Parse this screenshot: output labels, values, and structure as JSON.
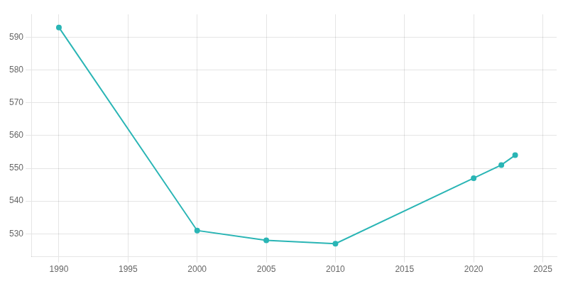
{
  "chart_data": {
    "type": "line",
    "x": [
      1990,
      2000,
      2005,
      2010,
      2020,
      2022,
      2023
    ],
    "values": [
      593,
      531,
      528,
      527,
      547,
      551,
      554
    ],
    "color": "#2ab5b5",
    "marker": "o",
    "xlim": [
      1988,
      2026
    ],
    "xticks": [
      1990,
      1995,
      2000,
      2005,
      2010,
      2015,
      2020,
      2025
    ],
    "ylim": [
      523,
      597
    ],
    "yticks": [
      530,
      540,
      550,
      560,
      570,
      580,
      590
    ],
    "grid": true
  }
}
